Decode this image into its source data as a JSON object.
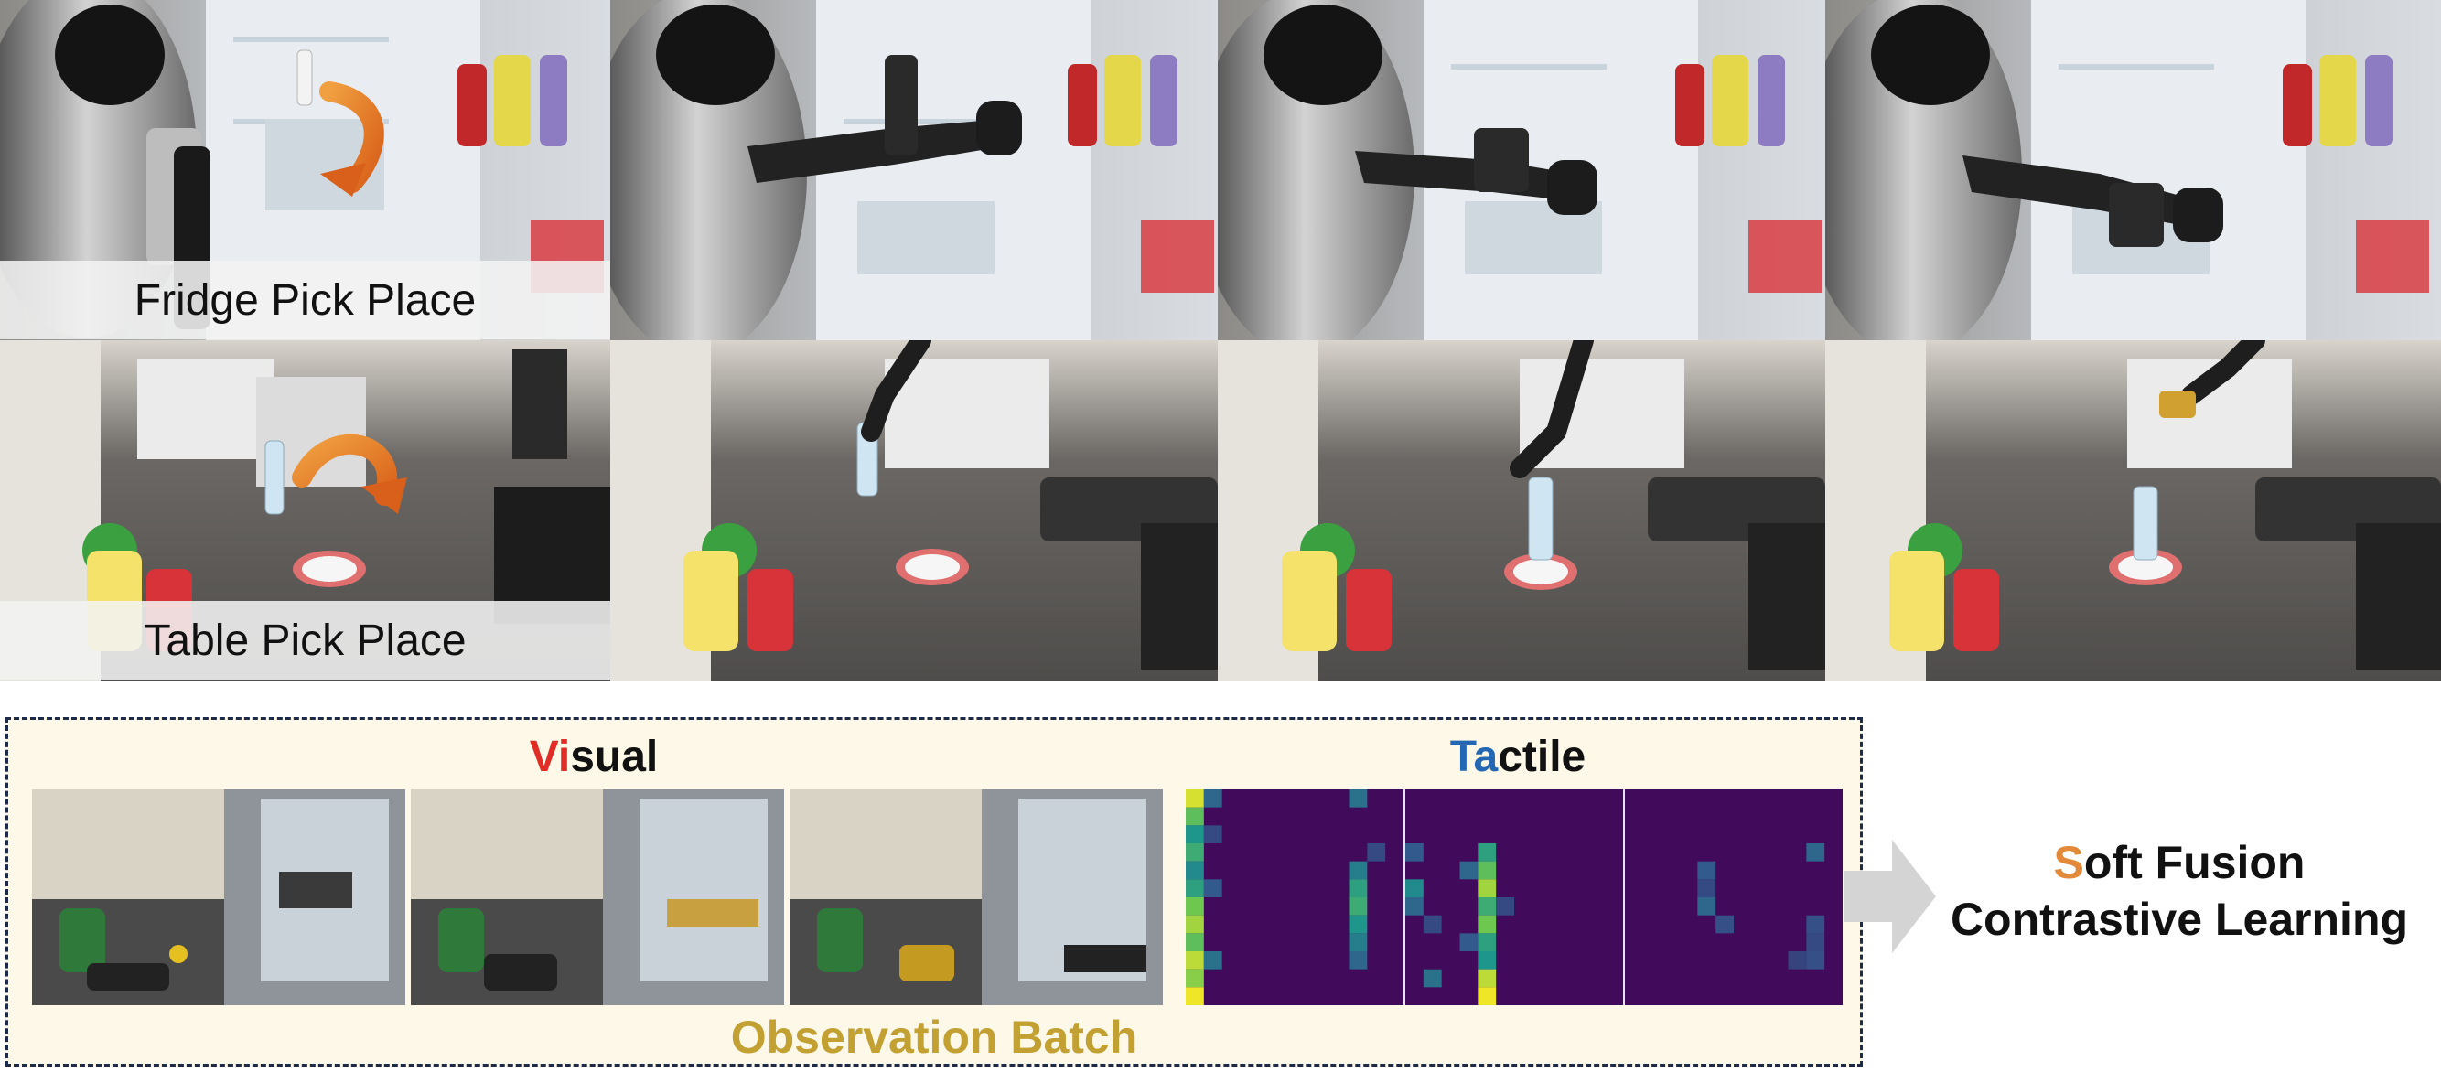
{
  "tasks": [
    {
      "label": "Fridge Pick Place"
    },
    {
      "label": "Table Pick Place"
    }
  ],
  "batch": {
    "visual_first": "Vi",
    "visual_rest": "sual",
    "tactile_first": "Ta",
    "tactile_rest": "ctile",
    "observation_label": "Observation Batch"
  },
  "method": {
    "line1_first": "S",
    "line1_rest": "oft Fusion",
    "line2": "Contrastive Learning"
  },
  "colors": {
    "visual_accent": "#e02d25",
    "tactile_accent": "#2468b4",
    "soft_accent": "#e2893a",
    "observation_label": "#c2a032",
    "panel_background": "#fdf8e8",
    "panel_border": "#1e2a4a",
    "tactile_background": "#410a5a",
    "arrow": "#d4d4d4"
  },
  "icons": {
    "task_arrow": "curved-arrow-icon",
    "flow_arrow": "right-arrow-icon"
  },
  "tactile_frames": [
    {
      "cells": [
        [
          0,
          0,
          0.95
        ],
        [
          0,
          1,
          0.7
        ],
        [
          0,
          2,
          0.5
        ],
        [
          0,
          3,
          0.6
        ],
        [
          0,
          4,
          0.45
        ],
        [
          0,
          5,
          0.55
        ],
        [
          0,
          6,
          0.75
        ],
        [
          0,
          7,
          0.85
        ],
        [
          0,
          8,
          0.7
        ],
        [
          0,
          9,
          0.9
        ],
        [
          0,
          10,
          0.8
        ],
        [
          0,
          11,
          1.0
        ],
        [
          1,
          0,
          0.3
        ],
        [
          1,
          2,
          0.2
        ],
        [
          1,
          5,
          0.25
        ],
        [
          1,
          9,
          0.35
        ],
        [
          9,
          0,
          0.35
        ],
        [
          9,
          4,
          0.4
        ],
        [
          9,
          5,
          0.55
        ],
        [
          9,
          6,
          0.6
        ],
        [
          9,
          7,
          0.5
        ],
        [
          9,
          8,
          0.4
        ],
        [
          9,
          9,
          0.3
        ],
        [
          10,
          3,
          0.2
        ]
      ]
    },
    {
      "cells": [
        [
          0,
          3,
          0.25
        ],
        [
          0,
          5,
          0.45
        ],
        [
          0,
          6,
          0.3
        ],
        [
          1,
          7,
          0.2
        ],
        [
          1,
          10,
          0.35
        ],
        [
          4,
          3,
          0.55
        ],
        [
          4,
          4,
          0.7
        ],
        [
          4,
          5,
          0.85
        ],
        [
          4,
          6,
          0.6
        ],
        [
          4,
          7,
          0.75
        ],
        [
          4,
          8,
          0.55
        ],
        [
          4,
          9,
          0.5
        ],
        [
          4,
          10,
          0.9
        ],
        [
          4,
          11,
          1.0
        ],
        [
          3,
          4,
          0.3
        ],
        [
          3,
          8,
          0.25
        ],
        [
          5,
          6,
          0.2
        ]
      ]
    },
    {
      "cells": [
        [
          4,
          4,
          0.25
        ],
        [
          4,
          5,
          0.2
        ],
        [
          4,
          6,
          0.3
        ],
        [
          5,
          7,
          0.22
        ],
        [
          10,
          3,
          0.3
        ],
        [
          10,
          7,
          0.22
        ],
        [
          10,
          8,
          0.2
        ],
        [
          9,
          9,
          0.18
        ],
        [
          10,
          9,
          0.22
        ]
      ]
    }
  ]
}
